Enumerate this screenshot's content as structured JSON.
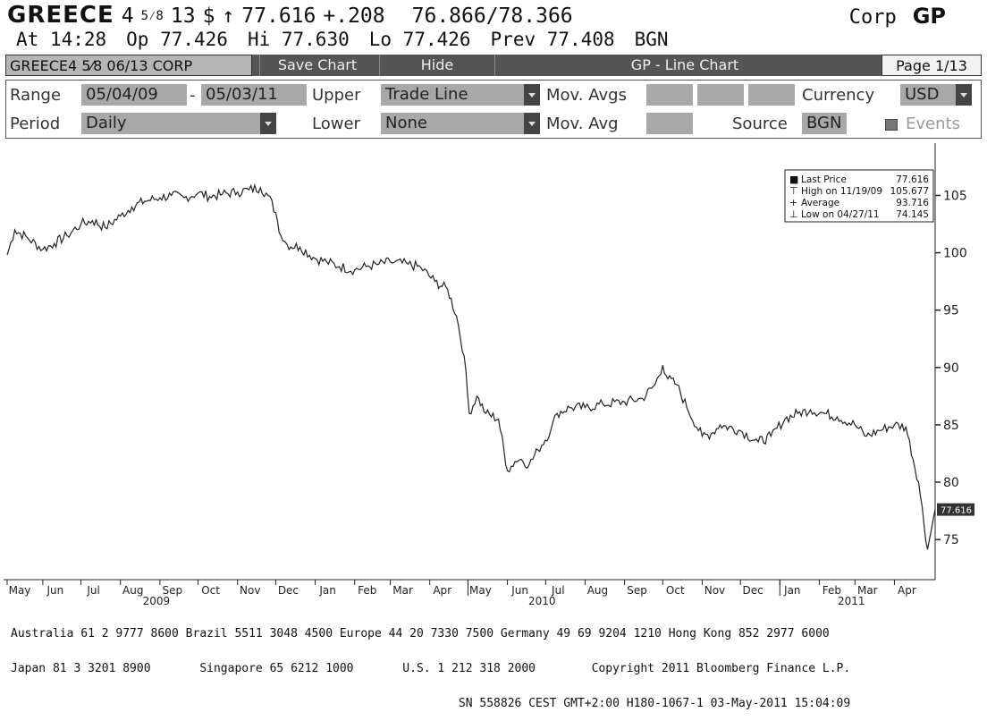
{
  "header": {
    "security_prefix": "GREECE",
    "coupon_whole": "4",
    "coupon_frac": "5⁄8",
    "maturity": "13",
    "currency_symbol": "$",
    "arrow": "↑",
    "last_price": "77.616",
    "change": "+.208",
    "bid_ask": "76.866/78.366",
    "market": "Corp",
    "ticker": "GP",
    "time": "At 14:28",
    "open": "Op 77.426",
    "high": "Hi 77.630",
    "low": "Lo 77.426",
    "prev": "Prev 77.408",
    "source": "BGN"
  },
  "toolbar": {
    "security_label": "GREECE4 5⁄8 06/13 CORP",
    "save_label": "Save Chart",
    "hide_label": "Hide",
    "chart_title": "GP - Line Chart",
    "page_label": "Page 1/13"
  },
  "controls": {
    "range_label": "Range",
    "range_start": "05/04/09",
    "range_dash": "-",
    "range_end": "05/03/11",
    "upper_label": "Upper",
    "upper_value": "Trade Line",
    "mov_avgs_label": "Mov. Avgs",
    "currency_label": "Currency",
    "currency_value": "USD",
    "period_label": "Period",
    "period_value": "Daily",
    "lower_label": "Lower",
    "lower_value": "None",
    "mov_avg_label": "Mov. Avg",
    "source_label": "Source",
    "source_value": "BGN",
    "events_label": "Events"
  },
  "chart_data": {
    "type": "line",
    "series": [
      {
        "x": [
          "2009-05-04",
          "2009-05-10",
          "2009-05-20",
          "2009-06-01",
          "2009-06-10",
          "2009-06-20",
          "2009-07-01",
          "2009-07-10",
          "2009-07-20",
          "2009-08-01",
          "2009-08-10",
          "2009-08-20",
          "2009-09-01",
          "2009-09-10",
          "2009-09-20",
          "2009-10-01",
          "2009-10-10",
          "2009-10-20",
          "2009-11-01",
          "2009-11-10",
          "2009-11-19",
          "2009-11-25",
          "2009-12-01",
          "2009-12-05",
          "2009-12-10",
          "2009-12-20",
          "2010-01-01",
          "2010-01-10",
          "2010-01-20",
          "2010-02-01",
          "2010-02-10",
          "2010-02-20",
          "2010-03-01",
          "2010-03-15",
          "2010-03-25",
          "2010-04-05",
          "2010-04-15",
          "2010-04-22",
          "2010-04-28",
          "2010-05-02",
          "2010-05-08",
          "2010-05-15",
          "2010-05-25",
          "2010-06-01",
          "2010-06-07",
          "2010-06-12",
          "2010-06-18",
          "2010-06-25",
          "2010-07-05",
          "2010-07-10",
          "2010-07-20",
          "2010-08-01",
          "2010-08-15",
          "2010-09-01",
          "2010-09-15",
          "2010-09-25",
          "2010-10-01",
          "2010-10-05",
          "2010-10-12",
          "2010-10-20",
          "2010-11-01",
          "2010-11-08",
          "2010-11-15",
          "2010-12-01",
          "2010-12-15",
          "2010-12-25",
          "2011-01-05",
          "2011-01-15",
          "2011-01-25",
          "2011-02-05",
          "2011-02-15",
          "2011-03-01",
          "2011-03-10",
          "2011-03-20",
          "2011-04-01",
          "2011-04-10",
          "2011-04-20",
          "2011-04-27",
          "2011-05-03"
        ],
        "y": [
          99.8,
          102.0,
          101.3,
          100.3,
          100.8,
          101.5,
          102.5,
          102.8,
          102.2,
          103.2,
          104.0,
          104.5,
          104.8,
          105.0,
          104.8,
          105.2,
          104.9,
          105.1,
          105.3,
          105.5,
          105.677,
          105.0,
          103.5,
          101.5,
          100.7,
          100.5,
          99.5,
          99.2,
          98.8,
          98.5,
          98.8,
          99.0,
          99.2,
          99.0,
          98.7,
          97.5,
          96.8,
          94.5,
          91.0,
          86.0,
          87.5,
          86.0,
          85.5,
          81.0,
          81.8,
          82.0,
          81.5,
          82.8,
          84.5,
          86.0,
          86.5,
          86.5,
          86.8,
          87.0,
          87.3,
          88.5,
          90.2,
          89.0,
          88.5,
          86.5,
          84.0,
          84.2,
          85.0,
          84.5,
          83.5,
          84.0,
          85.5,
          86.0,
          86.3,
          86.0,
          85.7,
          85.0,
          84.0,
          84.5,
          85.0,
          84.8,
          80.0,
          74.145,
          77.616
        ]
      }
    ],
    "x_ticks": [
      {
        "date": "2009-05-01",
        "label": "May"
      },
      {
        "date": "2009-06-01",
        "label": "Jun"
      },
      {
        "date": "2009-07-01",
        "label": "Jul"
      },
      {
        "date": "2009-08-01",
        "label": "Aug"
      },
      {
        "date": "2009-09-01",
        "label": "Sep"
      },
      {
        "date": "2009-10-01",
        "label": "Oct"
      },
      {
        "date": "2009-11-01",
        "label": "Nov"
      },
      {
        "date": "2009-12-01",
        "label": "Dec"
      },
      {
        "date": "2010-01-01",
        "label": "Jan"
      },
      {
        "date": "2010-02-01",
        "label": "Feb"
      },
      {
        "date": "2010-03-01",
        "label": "Mar"
      },
      {
        "date": "2010-04-01",
        "label": "Apr"
      },
      {
        "date": "2010-05-01",
        "label": "May"
      },
      {
        "date": "2010-06-01",
        "label": "Jun"
      },
      {
        "date": "2010-07-01",
        "label": "Jul"
      },
      {
        "date": "2010-08-01",
        "label": "Aug"
      },
      {
        "date": "2010-09-01",
        "label": "Sep"
      },
      {
        "date": "2010-10-01",
        "label": "Oct"
      },
      {
        "date": "2010-11-01",
        "label": "Nov"
      },
      {
        "date": "2010-12-01",
        "label": "Dec"
      },
      {
        "date": "2011-01-01",
        "label": "Jan"
      },
      {
        "date": "2011-02-01",
        "label": "Feb"
      },
      {
        "date": "2011-03-01",
        "label": "Mar"
      },
      {
        "date": "2011-04-01",
        "label": "Apr"
      }
    ],
    "years": [
      {
        "date": "2009-09-01",
        "label": "2009"
      },
      {
        "date": "2010-07-01",
        "label": "2010"
      },
      {
        "date": "2011-03-01",
        "label": "2011"
      }
    ],
    "y_ticks": [
      75,
      80,
      85,
      90,
      95,
      100,
      105
    ],
    "ylim": [
      71.5,
      108.0
    ],
    "xlim": [
      "2009-05-04",
      "2011-05-03"
    ],
    "last_value_label": "77.616",
    "legend": {
      "position": "top-right",
      "entries": [
        {
          "symbol": "■",
          "label": "Last Price",
          "value": "77.616"
        },
        {
          "symbol": "⊤",
          "label": "High on 11/19/09",
          "value": "105.677"
        },
        {
          "symbol": "+",
          "label": "Average",
          "value": "93.716"
        },
        {
          "symbol": "⊥",
          "label": "Low on 04/27/11",
          "value": "74.145"
        }
      ]
    }
  },
  "footer": {
    "line1": "Australia 61 2 9777 8600 Brazil 5511 3048 4500 Europe 44 20 7330 7500 Germany 49 69 9204 1210 Hong Kong 852 2977 6000",
    "line2": "Japan 81 3 3201 8900       Singapore 65 6212 1000       U.S. 1 212 318 2000        Copyright 2011 Bloomberg Finance L.P.",
    "line3": "                                                                SN 558826 CEST GMT+2:00 H180-1067-1 03-May-2011 15:04:09"
  }
}
